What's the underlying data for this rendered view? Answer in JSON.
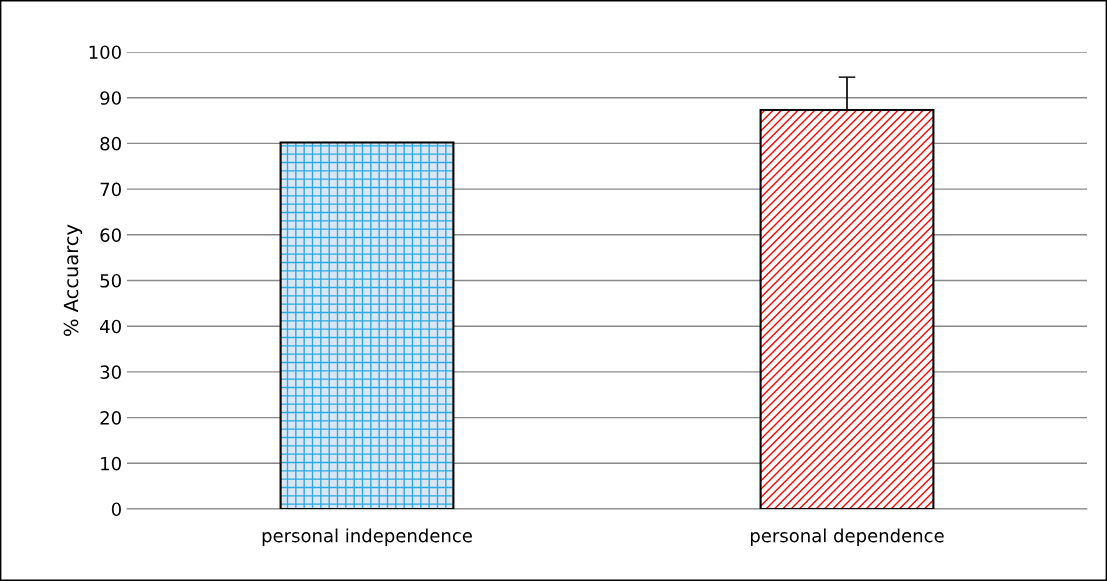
{
  "chart_data": {
    "type": "bar",
    "ylabel": "% Accuarcy",
    "categories": [
      "personal independence",
      "personal dependence"
    ],
    "values": [
      80.2,
      87.3
    ],
    "errors": [
      null,
      [
        87.3,
        94.5
      ]
    ],
    "colors": [
      "#29abe2",
      "#ff0000"
    ],
    "ylim": [
      0,
      100
    ],
    "yticks": [
      0,
      10,
      20,
      30,
      40,
      50,
      60,
      70,
      80,
      90,
      100
    ],
    "grid": "y",
    "legend": false
  }
}
